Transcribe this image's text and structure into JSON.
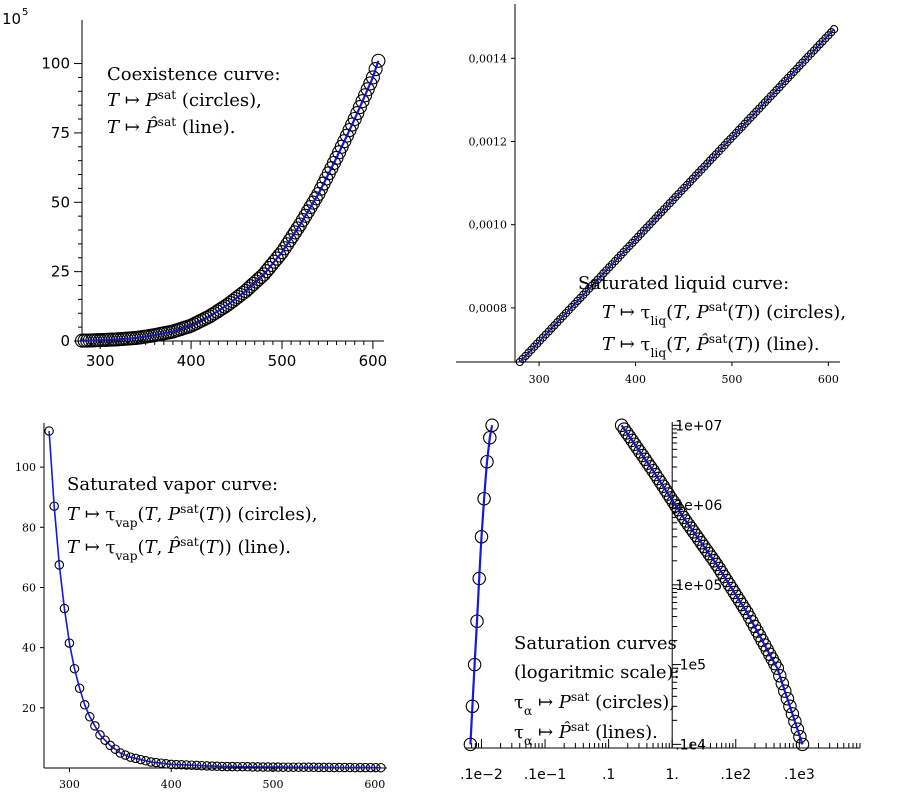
{
  "chart_data": [
    {
      "type": "scatter",
      "panel": "top-left",
      "exponent_label": "10^5",
      "exponent_base": "10",
      "exponent_power": "5",
      "x_ticks": [
        300,
        400,
        500,
        600
      ],
      "y_ticks": [
        0,
        25,
        50,
        75,
        100
      ],
      "xlim": [
        280,
        610
      ],
      "ylim": [
        0,
        102
      ],
      "annotation": [
        "Coexistence curve:",
        "T ↦ P^sat (circles),",
        "T ↦ P̂^sat (line)."
      ],
      "series": [
        {
          "marker": "circle",
          "color": "#000000",
          "x": [
            280,
            300,
            320,
            340,
            360,
            380,
            400,
            420,
            440,
            460,
            480,
            500,
            520,
            540,
            560,
            580,
            600,
            606
          ],
          "y": [
            0.1,
            0.3,
            0.6,
            1.1,
            2.1,
            3.4,
            5.5,
            8.8,
            13,
            18,
            24,
            32,
            42,
            53,
            66,
            80,
            95,
            101
          ]
        },
        {
          "line": true,
          "color": "#1a1adb",
          "x": [
            280,
            300,
            320,
            340,
            360,
            380,
            400,
            420,
            440,
            460,
            480,
            500,
            520,
            540,
            560,
            580,
            600,
            606
          ],
          "y": [
            0.1,
            0.3,
            0.6,
            1.1,
            2.1,
            3.4,
            5.5,
            8.8,
            13,
            18,
            24,
            32,
            42,
            53,
            66,
            80,
            95,
            101
          ]
        }
      ]
    },
    {
      "type": "scatter",
      "panel": "top-right",
      "x_ticks": [
        300,
        400,
        500,
        600
      ],
      "y_ticks": [
        "0,0008",
        "0,0010",
        "0,0012",
        "0,0014"
      ],
      "y_tick_values": [
        0.0008,
        0.001,
        0.0012,
        0.0014
      ],
      "xlim": [
        275,
        610
      ],
      "ylim": [
        0.00067,
        0.00148
      ],
      "annotation": [
        "Saturated liquid curve:",
        "T ↦ τ_liq(T, P^sat(T)) (circles),",
        "T ↦ τ_liq(T, P̂^sat(T)) (line)."
      ],
      "series": [
        {
          "marker": "circle",
          "color": "#000000",
          "x": [
            280,
            606
          ],
          "y": [
            0.00067,
            0.00147
          ]
        },
        {
          "line": true,
          "color": "#1a1adb",
          "x": [
            280,
            606
          ],
          "y": [
            0.00067,
            0.00147
          ]
        }
      ]
    },
    {
      "type": "scatter",
      "panel": "bottom-left",
      "x_ticks": [
        300,
        400,
        500,
        600
      ],
      "y_ticks": [
        20,
        40,
        60,
        80,
        100
      ],
      "xlim": [
        275,
        610
      ],
      "ylim": [
        0,
        113
      ],
      "annotation": [
        "Saturated vapor curve:",
        "T ↦ τ_vap(T, P^sat(T)) (circles),",
        "T ↦ τ_vap(T, P̂^sat(T)) (line)."
      ],
      "series": [
        {
          "marker": "circle",
          "color": "#000000",
          "x": [
            280,
            285,
            290,
            295,
            300,
            305,
            310,
            315,
            320,
            330,
            340,
            350,
            360,
            380,
            400,
            450,
            500,
            550,
            606
          ],
          "y": [
            112,
            87,
            67.5,
            53,
            41.5,
            33,
            26.5,
            21,
            17,
            11,
            7.5,
            5,
            3.6,
            2,
            1.2,
            0.5,
            0.3,
            0.2,
            0.1
          ]
        },
        {
          "line": true,
          "color": "#1a1adb",
          "x": [
            280,
            285,
            290,
            295,
            300,
            305,
            310,
            315,
            320,
            330,
            340,
            350,
            360,
            380,
            400,
            450,
            500,
            550,
            606
          ],
          "y": [
            112,
            87,
            67.5,
            53,
            41.5,
            33,
            26.5,
            21,
            17,
            11,
            7.5,
            5,
            3.6,
            2,
            1.2,
            0.5,
            0.3,
            0.2,
            0.1
          ]
        }
      ]
    },
    {
      "type": "scatter",
      "panel": "bottom-right",
      "x_scale": "log",
      "y_scale": "log",
      "x_ticks": [
        ".1e−2",
        ".1e−1",
        ".1",
        "1.",
        ".1e2",
        ".1e3"
      ],
      "x_tick_values": [
        0.001,
        0.01,
        0.1,
        1,
        10,
        100
      ],
      "y_ticks": [
        ".1e4",
        ".1e5",
        "1e+05",
        "1e+06",
        "1e+07"
      ],
      "y_tick_values": [
        1000,
        10000,
        100000,
        1000000,
        10000000
      ],
      "xlim": [
        0.00066,
        900
      ],
      "ylim": [
        900,
        11000000
      ],
      "annotation": [
        "Saturation curves",
        "(logaritmic scale):",
        "τ_α ↦ P^sat (circles),",
        "τ_α ↦ P̂^sat (lines)."
      ],
      "series": [
        {
          "name_key": "liquid",
          "marker": "circle",
          "color": "#000000",
          "x": [
            0.00067,
            0.00072,
            0.00078,
            0.00085,
            0.00092,
            0.001,
            0.0011,
            0.00122,
            0.00135,
            0.00147
          ],
          "y": [
            1000,
            3000,
            10000,
            35000,
            120000,
            400000,
            1200000,
            3500000,
            7000000,
            10000000
          ]
        },
        {
          "name_key": "liquid",
          "line": true,
          "color": "#1a1adb",
          "x": [
            0.00067,
            0.00072,
            0.00078,
            0.00085,
            0.00092,
            0.001,
            0.0011,
            0.00122,
            0.00135,
            0.00147
          ],
          "y": [
            1000,
            3000,
            10000,
            35000,
            120000,
            400000,
            1200000,
            3500000,
            7000000,
            10000000
          ]
        },
        {
          "name_key": "vapor",
          "marker": "circle",
          "color": "#000000",
          "x": [
            0.16,
            0.5,
            1.5,
            5,
            15,
            45,
            112
          ],
          "y": [
            10000000,
            2700000,
            700000,
            180000,
            45000,
            9000,
            1000
          ]
        },
        {
          "name_key": "vapor",
          "line": true,
          "color": "#1a1adb",
          "x": [
            0.16,
            0.5,
            1.5,
            5,
            15,
            45,
            112
          ],
          "y": [
            10000000,
            2700000,
            700000,
            180000,
            45000,
            9000,
            1000
          ]
        }
      ]
    }
  ]
}
